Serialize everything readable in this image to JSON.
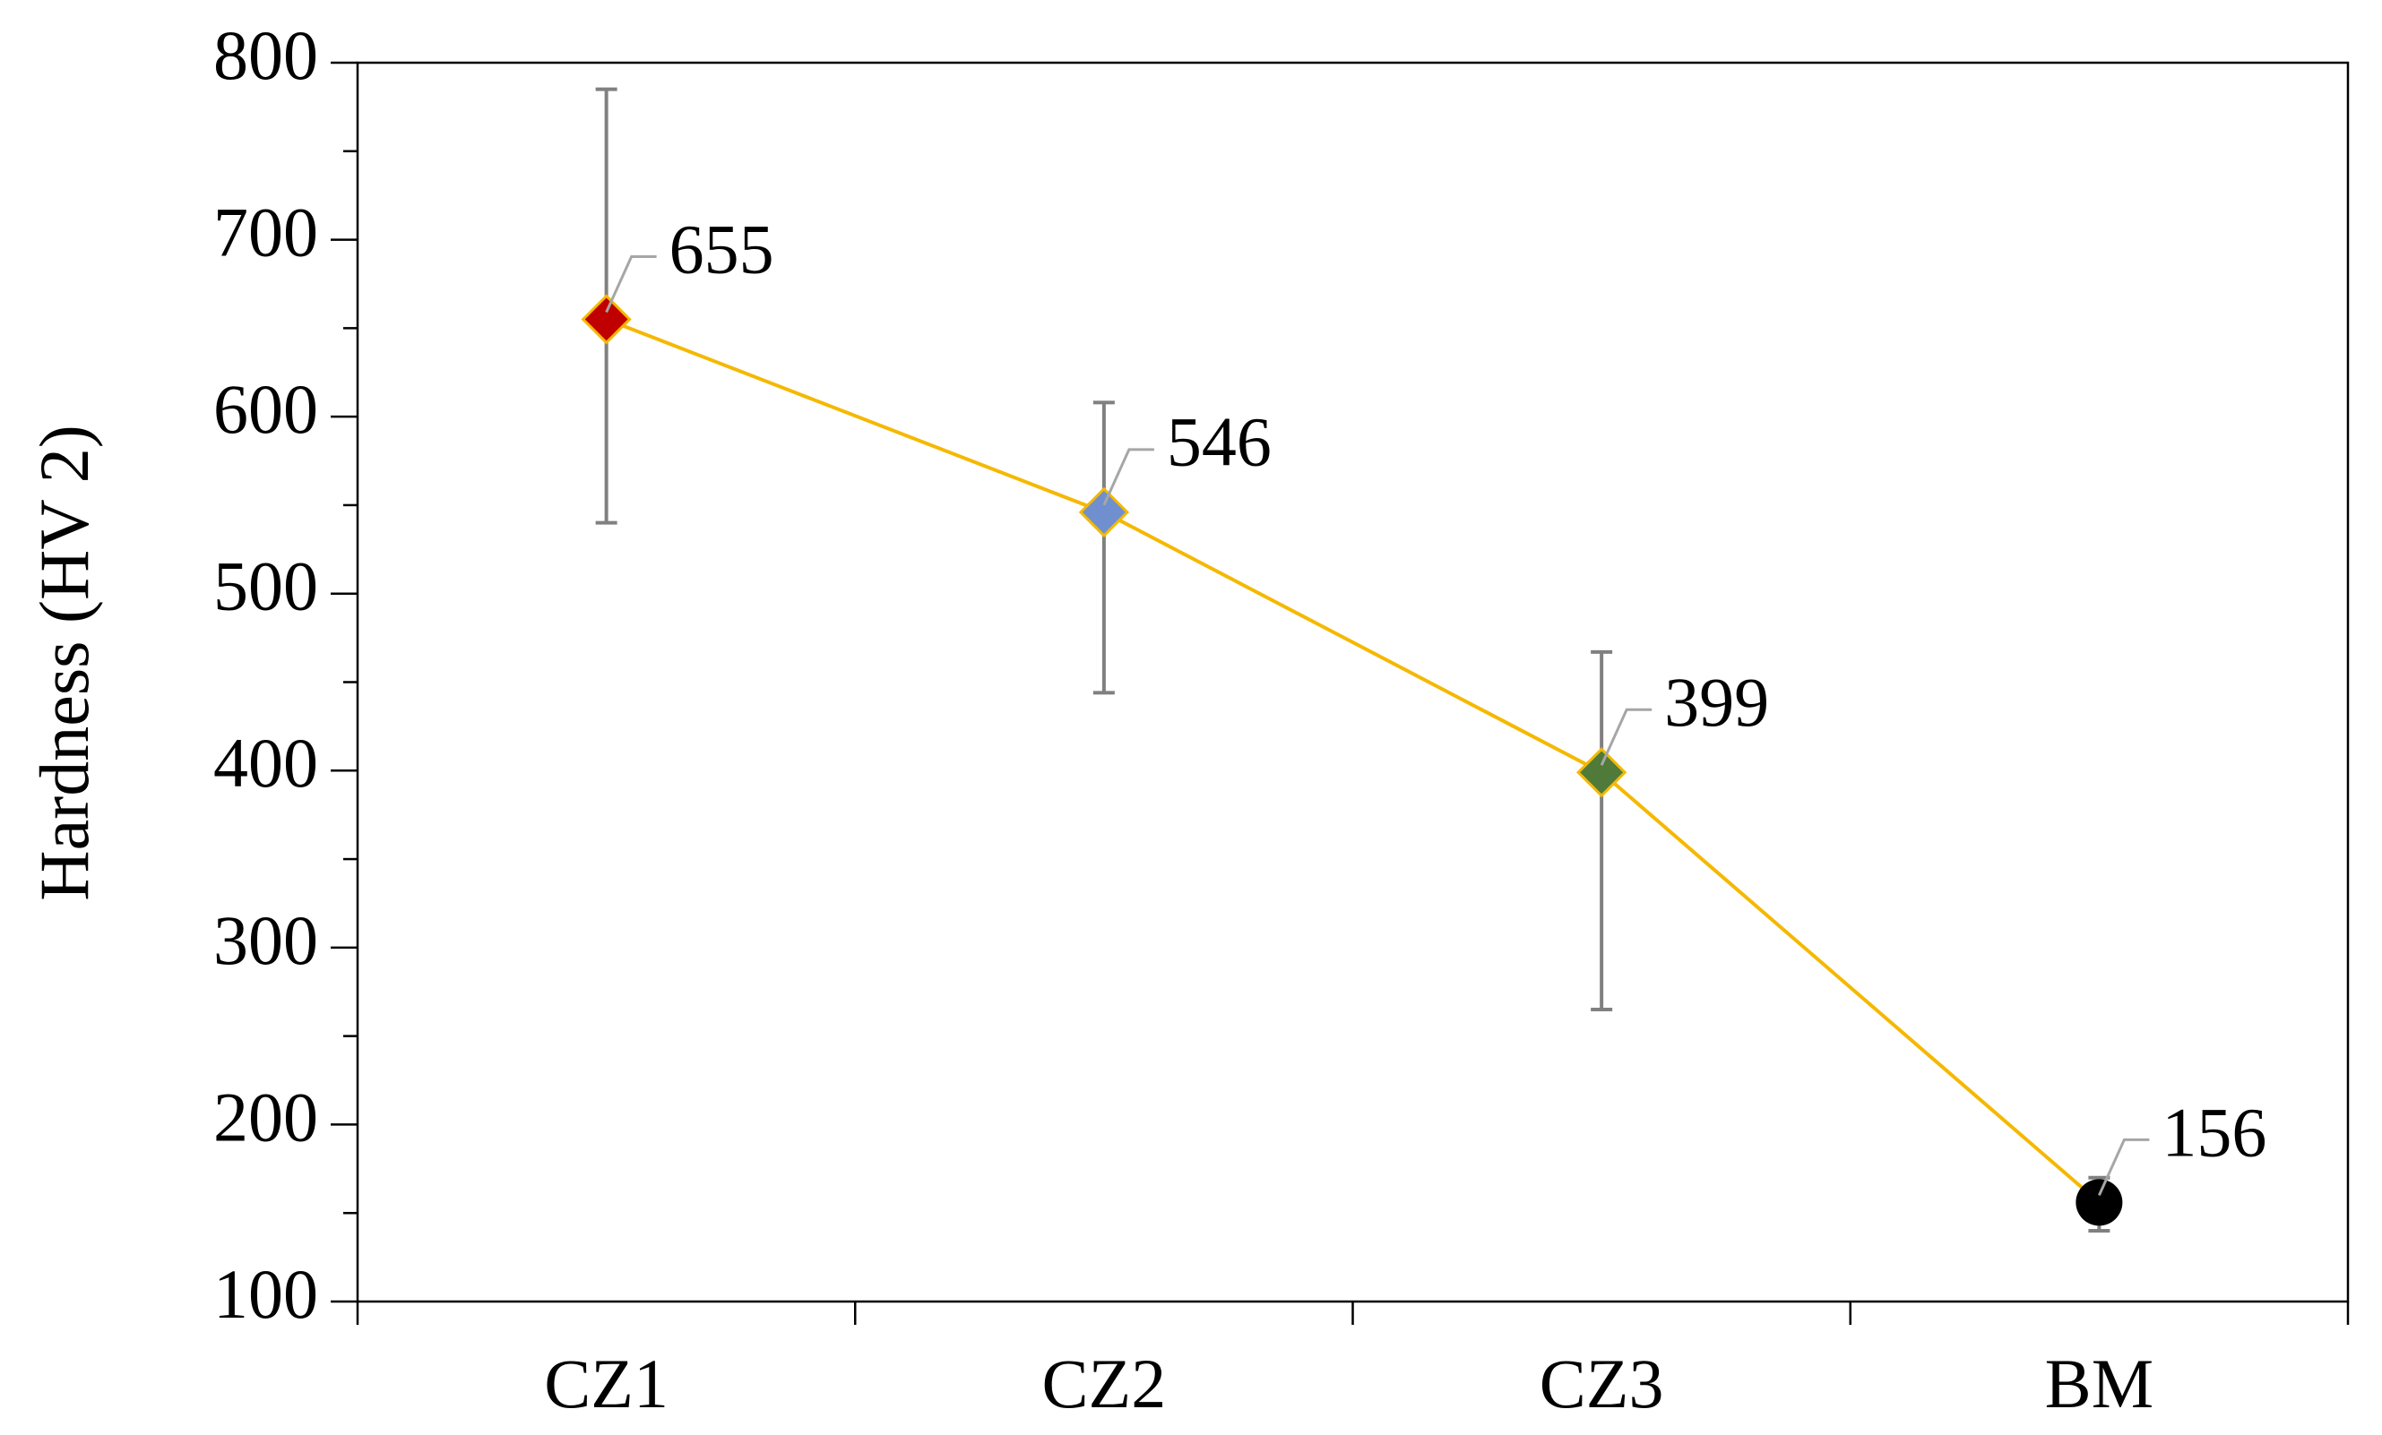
{
  "chart_data": {
    "type": "line",
    "y_label": "Hardness (HV 2)",
    "categories": [
      "CZ1",
      "CZ2",
      "CZ3",
      "BM"
    ],
    "series": [
      {
        "color": "#f5b800",
        "values": [
          655,
          546,
          399,
          156
        ],
        "error_plus": [
          130,
          62,
          68,
          14
        ],
        "error_minus": [
          115,
          102,
          134,
          16
        ],
        "marker_colors": [
          "#c00000",
          "#6f8fcf",
          "#4f7a3a",
          "#000000"
        ],
        "marker_shapes": [
          "diamond",
          "diamond",
          "diamond",
          "circle"
        ]
      }
    ],
    "ylim": [
      100,
      800
    ],
    "yticks": [
      100,
      200,
      300,
      400,
      500,
      600,
      700,
      800
    ],
    "yminor_ticks": [
      150,
      250,
      350,
      450,
      550,
      650,
      750
    ],
    "data_labels": true
  }
}
